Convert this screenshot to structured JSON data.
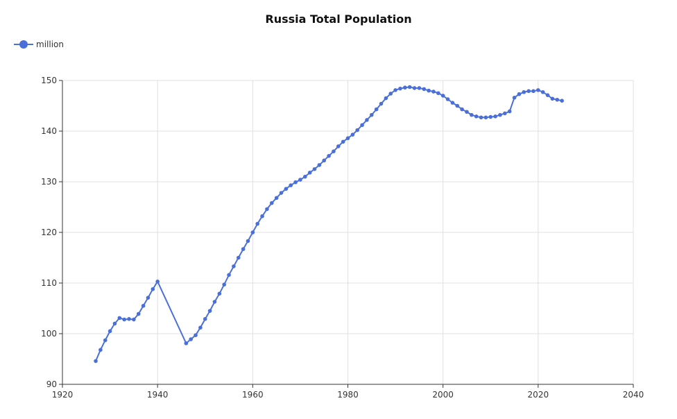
{
  "chart_data": {
    "type": "line",
    "title": "Russia Total Population",
    "xlabel": "",
    "ylabel": "",
    "xlim": [
      1920,
      2040
    ],
    "ylim": [
      90,
      150
    ],
    "xticks": [
      1920,
      1940,
      1960,
      1980,
      2000,
      2020,
      2040
    ],
    "yticks": [
      90,
      100,
      110,
      120,
      130,
      140,
      150
    ],
    "grid": true,
    "legend_position": "top-left",
    "series": [
      {
        "name": "million",
        "color": "#4a6fd8",
        "points": [
          [
            1927,
            94.6
          ],
          [
            1928,
            96.8
          ],
          [
            1929,
            98.7
          ],
          [
            1930,
            100.5
          ],
          [
            1931,
            102.0
          ],
          [
            1932,
            103.1
          ],
          [
            1933,
            102.8
          ],
          [
            1934,
            102.9
          ],
          [
            1935,
            102.8
          ],
          [
            1936,
            103.9
          ],
          [
            1937,
            105.5
          ],
          [
            1938,
            107.1
          ],
          [
            1939,
            108.8
          ],
          [
            1940,
            110.3
          ],
          [
            1946,
            98.1
          ],
          [
            1947,
            98.9
          ],
          [
            1948,
            99.7
          ],
          [
            1949,
            101.2
          ],
          [
            1950,
            102.9
          ],
          [
            1951,
            104.5
          ],
          [
            1952,
            106.3
          ],
          [
            1953,
            107.9
          ],
          [
            1954,
            109.7
          ],
          [
            1955,
            111.6
          ],
          [
            1956,
            113.3
          ],
          [
            1957,
            115.0
          ],
          [
            1958,
            116.7
          ],
          [
            1959,
            118.3
          ],
          [
            1960,
            120.0
          ],
          [
            1961,
            121.7
          ],
          [
            1962,
            123.2
          ],
          [
            1963,
            124.6
          ],
          [
            1964,
            125.8
          ],
          [
            1965,
            126.8
          ],
          [
            1966,
            127.8
          ],
          [
            1967,
            128.6
          ],
          [
            1968,
            129.3
          ],
          [
            1969,
            129.9
          ],
          [
            1970,
            130.4
          ],
          [
            1971,
            131.0
          ],
          [
            1972,
            131.8
          ],
          [
            1973,
            132.5
          ],
          [
            1974,
            133.3
          ],
          [
            1975,
            134.2
          ],
          [
            1976,
            135.1
          ],
          [
            1977,
            136.0
          ],
          [
            1978,
            137.0
          ],
          [
            1979,
            137.9
          ],
          [
            1980,
            138.6
          ],
          [
            1981,
            139.3
          ],
          [
            1982,
            140.2
          ],
          [
            1983,
            141.2
          ],
          [
            1984,
            142.2
          ],
          [
            1985,
            143.2
          ],
          [
            1986,
            144.3
          ],
          [
            1987,
            145.4
          ],
          [
            1988,
            146.5
          ],
          [
            1989,
            147.4
          ],
          [
            1990,
            148.1
          ],
          [
            1991,
            148.4
          ],
          [
            1992,
            148.6
          ],
          [
            1993,
            148.7
          ],
          [
            1994,
            148.5
          ],
          [
            1995,
            148.5
          ],
          [
            1996,
            148.3
          ],
          [
            1997,
            148.0
          ],
          [
            1998,
            147.8
          ],
          [
            1999,
            147.5
          ],
          [
            2000,
            147.0
          ],
          [
            2001,
            146.3
          ],
          [
            2002,
            145.6
          ],
          [
            2003,
            145.0
          ],
          [
            2004,
            144.3
          ],
          [
            2005,
            143.8
          ],
          [
            2006,
            143.2
          ],
          [
            2007,
            142.9
          ],
          [
            2008,
            142.7
          ],
          [
            2009,
            142.7
          ],
          [
            2010,
            142.8
          ],
          [
            2011,
            142.9
          ],
          [
            2012,
            143.2
          ],
          [
            2013,
            143.5
          ],
          [
            2014,
            143.9
          ],
          [
            2015,
            146.6
          ],
          [
            2016,
            147.3
          ],
          [
            2017,
            147.7
          ],
          [
            2018,
            147.9
          ],
          [
            2019,
            147.9
          ],
          [
            2020,
            148.1
          ],
          [
            2021,
            147.7
          ],
          [
            2022,
            147.1
          ],
          [
            2023,
            146.4
          ],
          [
            2024,
            146.2
          ],
          [
            2025,
            146.0
          ]
        ]
      }
    ]
  }
}
